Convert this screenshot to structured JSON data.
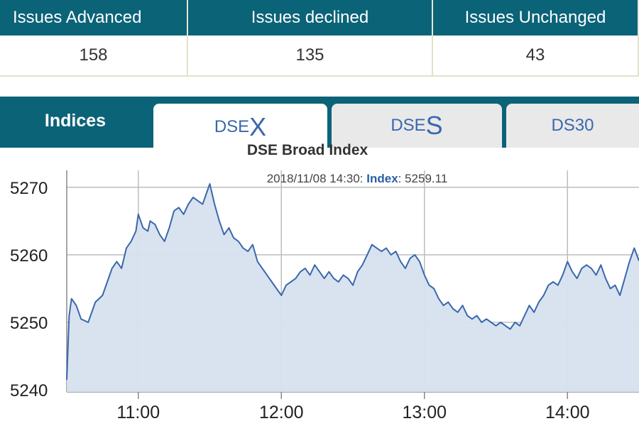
{
  "stats": {
    "headers": [
      "Issues Advanced",
      "Issues declined",
      "Issues Unchanged"
    ],
    "values": [
      "158",
      "135",
      "43"
    ]
  },
  "tabs": {
    "section_label": "Indices",
    "items": [
      {
        "prefix": "DSE",
        "suffix": "X",
        "active": true
      },
      {
        "prefix": "DSE",
        "suffix": "S",
        "active": false
      },
      {
        "label": "DS30",
        "active": false
      }
    ]
  },
  "tooltip": {
    "datetime": "2018/11/08 14:30:",
    "label": "Index",
    "value": ": 5259.11"
  },
  "colors": {
    "header_bg": "#0b6378",
    "line": "#3a67ad",
    "area": "#d6e1ee"
  },
  "chart_data": {
    "type": "area",
    "title": "DSE Broad Index",
    "xlabel": "",
    "ylabel": "",
    "ylim": [
      5239.7,
      5272.5
    ],
    "xlim": [
      "10:30",
      "14:30"
    ],
    "y_ticks": [
      "5240",
      "5250",
      "5260",
      "5270"
    ],
    "x_ticks": [
      "11:00",
      "12:00",
      "13:00",
      "14:00"
    ],
    "grid": true,
    "series": [
      {
        "points": [
          [
            "10:30",
            5241.5
          ],
          [
            "10:31",
            5251.0
          ],
          [
            "10:32",
            5253.5
          ],
          [
            "10:34",
            5252.5
          ],
          [
            "10:36",
            5250.5
          ],
          [
            "10:39",
            5250.0
          ],
          [
            "10:42",
            5253.0
          ],
          [
            "10:45",
            5254.0
          ],
          [
            "10:47",
            5256.0
          ],
          [
            "10:49",
            5258.0
          ],
          [
            "10:51",
            5259.0
          ],
          [
            "10:53",
            5258.0
          ],
          [
            "10:55",
            5261.0
          ],
          [
            "10:57",
            5262.0
          ],
          [
            "10:59",
            5263.5
          ],
          [
            "11:00",
            5266.0
          ],
          [
            "11:02",
            5264.0
          ],
          [
            "11:04",
            5263.5
          ],
          [
            "11:05",
            5265.0
          ],
          [
            "11:07",
            5264.5
          ],
          [
            "11:09",
            5263.0
          ],
          [
            "11:11",
            5262.0
          ],
          [
            "11:13",
            5264.0
          ],
          [
            "11:15",
            5266.5
          ],
          [
            "11:17",
            5267.0
          ],
          [
            "11:19",
            5266.0
          ],
          [
            "11:21",
            5267.5
          ],
          [
            "11:23",
            5268.5
          ],
          [
            "11:25",
            5268.0
          ],
          [
            "11:27",
            5267.5
          ],
          [
            "11:29",
            5269.5
          ],
          [
            "11:30",
            5270.5
          ],
          [
            "11:32",
            5267.5
          ],
          [
            "11:34",
            5265.0
          ],
          [
            "11:36",
            5263.0
          ],
          [
            "11:38",
            5264.0
          ],
          [
            "11:40",
            5262.5
          ],
          [
            "11:42",
            5262.0
          ],
          [
            "11:44",
            5261.0
          ],
          [
            "11:46",
            5260.5
          ],
          [
            "11:48",
            5261.5
          ],
          [
            "11:50",
            5259.0
          ],
          [
            "11:52",
            5258.0
          ],
          [
            "11:54",
            5257.0
          ],
          [
            "11:56",
            5256.0
          ],
          [
            "11:58",
            5255.0
          ],
          [
            "12:00",
            5254.0
          ],
          [
            "12:02",
            5255.5
          ],
          [
            "12:04",
            5256.0
          ],
          [
            "12:06",
            5256.5
          ],
          [
            "12:08",
            5257.5
          ],
          [
            "12:10",
            5258.0
          ],
          [
            "12:12",
            5257.0
          ],
          [
            "12:14",
            5258.5
          ],
          [
            "12:16",
            5257.5
          ],
          [
            "12:18",
            5256.5
          ],
          [
            "12:20",
            5257.5
          ],
          [
            "12:22",
            5256.5
          ],
          [
            "12:24",
            5256.0
          ],
          [
            "12:26",
            5257.0
          ],
          [
            "12:28",
            5256.5
          ],
          [
            "12:30",
            5255.5
          ],
          [
            "12:32",
            5257.5
          ],
          [
            "12:34",
            5258.5
          ],
          [
            "12:36",
            5260.0
          ],
          [
            "12:38",
            5261.5
          ],
          [
            "12:40",
            5261.0
          ],
          [
            "12:42",
            5260.5
          ],
          [
            "12:44",
            5261.0
          ],
          [
            "12:46",
            5260.0
          ],
          [
            "12:48",
            5260.5
          ],
          [
            "12:50",
            5259.0
          ],
          [
            "12:52",
            5258.0
          ],
          [
            "12:54",
            5259.5
          ],
          [
            "12:56",
            5260.0
          ],
          [
            "12:58",
            5259.0
          ],
          [
            "13:00",
            5257.0
          ],
          [
            "13:02",
            5255.5
          ],
          [
            "13:04",
            5255.0
          ],
          [
            "13:06",
            5253.5
          ],
          [
            "13:08",
            5252.5
          ],
          [
            "13:10",
            5253.0
          ],
          [
            "13:12",
            5252.0
          ],
          [
            "13:14",
            5251.5
          ],
          [
            "13:16",
            5252.5
          ],
          [
            "13:18",
            5251.0
          ],
          [
            "13:20",
            5250.5
          ],
          [
            "13:22",
            5251.0
          ],
          [
            "13:24",
            5250.0
          ],
          [
            "13:26",
            5250.5
          ],
          [
            "13:28",
            5250.0
          ],
          [
            "13:30",
            5249.5
          ],
          [
            "13:32",
            5250.0
          ],
          [
            "13:34",
            5249.5
          ],
          [
            "13:36",
            5249.0
          ],
          [
            "13:38",
            5250.0
          ],
          [
            "13:40",
            5249.5
          ],
          [
            "13:42",
            5251.0
          ],
          [
            "13:44",
            5252.5
          ],
          [
            "13:46",
            5251.5
          ],
          [
            "13:48",
            5253.0
          ],
          [
            "13:50",
            5254.0
          ],
          [
            "13:52",
            5255.5
          ],
          [
            "13:54",
            5256.0
          ],
          [
            "13:56",
            5255.5
          ],
          [
            "13:58",
            5257.0
          ],
          [
            "14:00",
            5259.0
          ],
          [
            "14:02",
            5257.5
          ],
          [
            "14:04",
            5256.5
          ],
          [
            "14:06",
            5258.0
          ],
          [
            "14:08",
            5258.5
          ],
          [
            "14:10",
            5258.0
          ],
          [
            "14:12",
            5257.0
          ],
          [
            "14:14",
            5258.5
          ],
          [
            "14:16",
            5256.5
          ],
          [
            "14:18",
            5255.0
          ],
          [
            "14:20",
            5255.5
          ],
          [
            "14:22",
            5254.0
          ],
          [
            "14:24",
            5256.5
          ],
          [
            "14:26",
            5259.0
          ],
          [
            "14:28",
            5261.0
          ],
          [
            "14:30",
            5259.11
          ]
        ]
      }
    ]
  }
}
